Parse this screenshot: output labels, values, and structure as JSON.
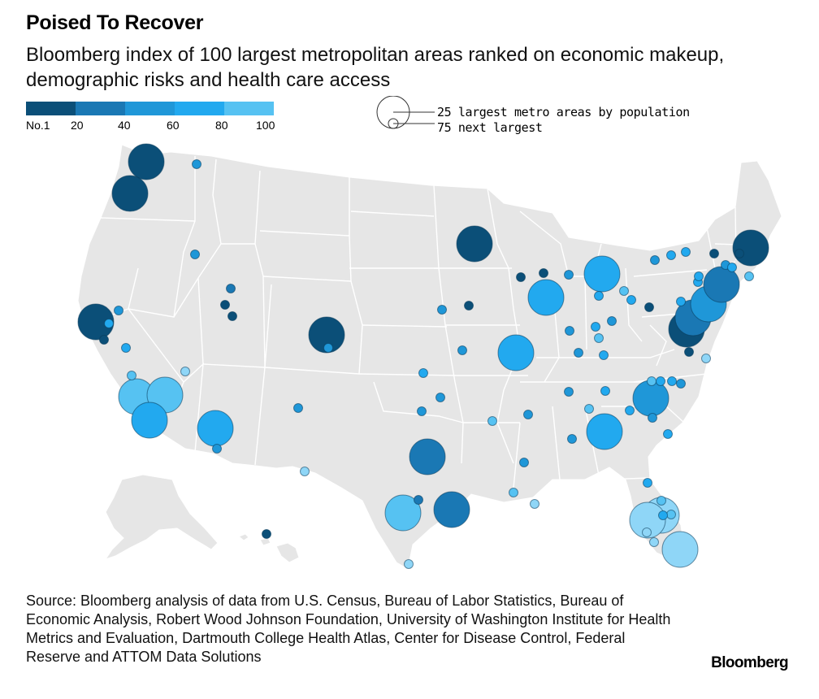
{
  "title": "Poised To Recover",
  "subtitle": "Bloomberg index of 100 largest metropolitan areas ranked on economic makeup, demographic risks and health care access",
  "legend": {
    "colors": [
      "#0b4f78",
      "#1a78b4",
      "#1f97d8",
      "#22a9ef",
      "#56c2f2",
      "#8fd6f7"
    ],
    "ticks": [
      "No.1",
      "20",
      "40",
      "60",
      "80",
      "100"
    ],
    "size_large": "25 largest metro areas by population",
    "size_small": "75 next largest"
  },
  "map_colors": {
    "land": "#e6e6e6",
    "border": "#ffffff",
    "marker_stroke": "#0a3a59"
  },
  "source": "Source: Bloomberg analysis of data from U.S. Census, Bureau of Labor Statistics, Bureau of Economic Analysis, Robert Wood Johnson Foundation, University of Washington Institute for Health Metrics and Evaluation, Dartmouth College Health Atlas, Center for Disease Control, Federal Reserve and ATTOM Data Solutions",
  "brand": "Bloomberg",
  "markers": [
    {
      "name": "Seattle",
      "tier": 0,
      "large": true
    },
    {
      "name": "Portland",
      "tier": 0,
      "large": true
    },
    {
      "name": "Spokane",
      "tier": 2,
      "large": false
    },
    {
      "name": "Boise",
      "tier": 2,
      "large": false
    },
    {
      "name": "San Francisco",
      "tier": 0,
      "large": true
    },
    {
      "name": "Sacramento",
      "tier": 2,
      "large": false
    },
    {
      "name": "San Jose",
      "tier": 0,
      "large": false
    },
    {
      "name": "Stockton",
      "tier": 3,
      "large": false
    },
    {
      "name": "Fresno",
      "tier": 3,
      "large": false
    },
    {
      "name": "Bakersfield",
      "tier": 4,
      "large": false
    },
    {
      "name": "Los Angeles",
      "tier": 4,
      "large": true
    },
    {
      "name": "Riverside",
      "tier": 4,
      "large": true
    },
    {
      "name": "San Diego",
      "tier": 3,
      "large": true
    },
    {
      "name": "Las Vegas",
      "tier": 5,
      "large": false
    },
    {
      "name": "Phoenix",
      "tier": 3,
      "large": true
    },
    {
      "name": "Tucson",
      "tier": 2,
      "large": false
    },
    {
      "name": "Salt Lake City",
      "tier": 0,
      "large": false
    },
    {
      "name": "Ogden",
      "tier": 1,
      "large": false
    },
    {
      "name": "Provo",
      "tier": 0,
      "large": false
    },
    {
      "name": "Denver",
      "tier": 0,
      "large": true
    },
    {
      "name": "Colorado Springs",
      "tier": 2,
      "large": false
    },
    {
      "name": "Albuquerque",
      "tier": 2,
      "large": false
    },
    {
      "name": "El Paso",
      "tier": 5,
      "large": false
    },
    {
      "name": "Minneapolis",
      "tier": 0,
      "large": true
    },
    {
      "name": "Omaha",
      "tier": 2,
      "large": false
    },
    {
      "name": "Des Moines",
      "tier": 0,
      "large": false
    },
    {
      "name": "Kansas City",
      "tier": 2,
      "large": false
    },
    {
      "name": "Wichita",
      "tier": 3,
      "large": false
    },
    {
      "name": "Tulsa",
      "tier": 2,
      "large": false
    },
    {
      "name": "Oklahoma City",
      "tier": 2,
      "large": false
    },
    {
      "name": "Dallas",
      "tier": 1,
      "large": true
    },
    {
      "name": "Austin",
      "tier": 4,
      "large": true
    },
    {
      "name": "Killeen",
      "tier": 1,
      "large": false
    },
    {
      "name": "Houston",
      "tier": 1,
      "large": true
    },
    {
      "name": "McAllen",
      "tier": 5,
      "large": false
    },
    {
      "name": "Honolulu",
      "tier": 0,
      "large": false
    },
    {
      "name": "Madison",
      "tier": 0,
      "large": false
    },
    {
      "name": "Milwaukee",
      "tier": 0,
      "large": false
    },
    {
      "name": "Chicago",
      "tier": 3,
      "large": true
    },
    {
      "name": "Grand Rapids",
      "tier": 2,
      "large": false
    },
    {
      "name": "Detroit",
      "tier": 3,
      "large": true
    },
    {
      "name": "Toledo",
      "tier": 3,
      "large": false
    },
    {
      "name": "Cleveland",
      "tier": 4,
      "large": false
    },
    {
      "name": "Akron",
      "tier": 3,
      "large": false
    },
    {
      "name": "St. Louis",
      "tier": 3,
      "large": true
    },
    {
      "name": "Indianapolis",
      "tier": 2,
      "large": false
    },
    {
      "name": "Dayton",
      "tier": 3,
      "large": false
    },
    {
      "name": "Columbus",
      "tier": 2,
      "large": false
    },
    {
      "name": "Cincinnati",
      "tier": 4,
      "large": false
    },
    {
      "name": "Louisville",
      "tier": 2,
      "large": false
    },
    {
      "name": "Lexington",
      "tier": 3,
      "large": false
    },
    {
      "name": "Nashville",
      "tier": 2,
      "large": false
    },
    {
      "name": "Knoxville",
      "tier": 3,
      "large": false
    },
    {
      "name": "Chattanooga",
      "tier": 4,
      "large": false
    },
    {
      "name": "Memphis",
      "tier": 2,
      "large": false
    },
    {
      "name": "Little Rock",
      "tier": 4,
      "large": false
    },
    {
      "name": "Birmingham",
      "tier": 2,
      "large": false
    },
    {
      "name": "Jackson",
      "tier": 2,
      "large": false
    },
    {
      "name": "Atlanta",
      "tier": 3,
      "large": true
    },
    {
      "name": "Charlotte",
      "tier": 2,
      "large": true
    },
    {
      "name": "Greenville",
      "tier": 3,
      "large": false
    },
    {
      "name": "Columbia",
      "tier": 2,
      "large": false
    },
    {
      "name": "Charleston",
      "tier": 3,
      "large": false
    },
    {
      "name": "Greensboro",
      "tier": 3,
      "large": false
    },
    {
      "name": "Winston-Salem",
      "tier": 4,
      "large": false
    },
    {
      "name": "Raleigh",
      "tier": 2,
      "large": false
    },
    {
      "name": "Durham",
      "tier": 3,
      "large": false
    },
    {
      "name": "Virginia Beach",
      "tier": 5,
      "large": false
    },
    {
      "name": "Richmond",
      "tier": 0,
      "large": false
    },
    {
      "name": "Washington",
      "tier": 0,
      "large": true
    },
    {
      "name": "Baltimore",
      "tier": 1,
      "large": true
    },
    {
      "name": "Philadelphia",
      "tier": 2,
      "large": true
    },
    {
      "name": "Allentown",
      "tier": 3,
      "large": false
    },
    {
      "name": "Harrisburg",
      "tier": 3,
      "large": false
    },
    {
      "name": "Pittsburgh",
      "tier": 0,
      "large": false
    },
    {
      "name": "New York",
      "tier": 1,
      "large": true
    },
    {
      "name": "Hartford",
      "tier": 2,
      "large": false
    },
    {
      "name": "Providence",
      "tier": 4,
      "large": false
    },
    {
      "name": "Worcester",
      "tier": 0,
      "large": false
    },
    {
      "name": "Boston",
      "tier": 0,
      "large": true
    },
    {
      "name": "Albany",
      "tier": 0,
      "large": false
    },
    {
      "name": "Syracuse",
      "tier": 3,
      "large": false
    },
    {
      "name": "Rochester",
      "tier": 2,
      "large": false
    },
    {
      "name": "Buffalo",
      "tier": 3,
      "large": false
    },
    {
      "name": "New Haven",
      "tier": 3,
      "large": false
    },
    {
      "name": "Scranton",
      "tier": 3,
      "large": false
    },
    {
      "name": "Jacksonville",
      "tier": 3,
      "large": false
    },
    {
      "name": "Orlando",
      "tier": 5,
      "large": true
    },
    {
      "name": "Tampa",
      "tier": 5,
      "large": true
    },
    {
      "name": "Lakeland",
      "tier": 4,
      "large": false
    },
    {
      "name": "Palm Bay",
      "tier": 4,
      "large": false
    },
    {
      "name": "North Port",
      "tier": 5,
      "large": false
    },
    {
      "name": "Cape Coral",
      "tier": 5,
      "large": false
    },
    {
      "name": "Miami",
      "tier": 5,
      "large": true
    },
    {
      "name": "Baton Rouge",
      "tier": 4,
      "large": false
    },
    {
      "name": "New Orleans",
      "tier": 5,
      "large": false
    },
    {
      "name": "Deltona",
      "tier": 3,
      "large": false
    }
  ]
}
